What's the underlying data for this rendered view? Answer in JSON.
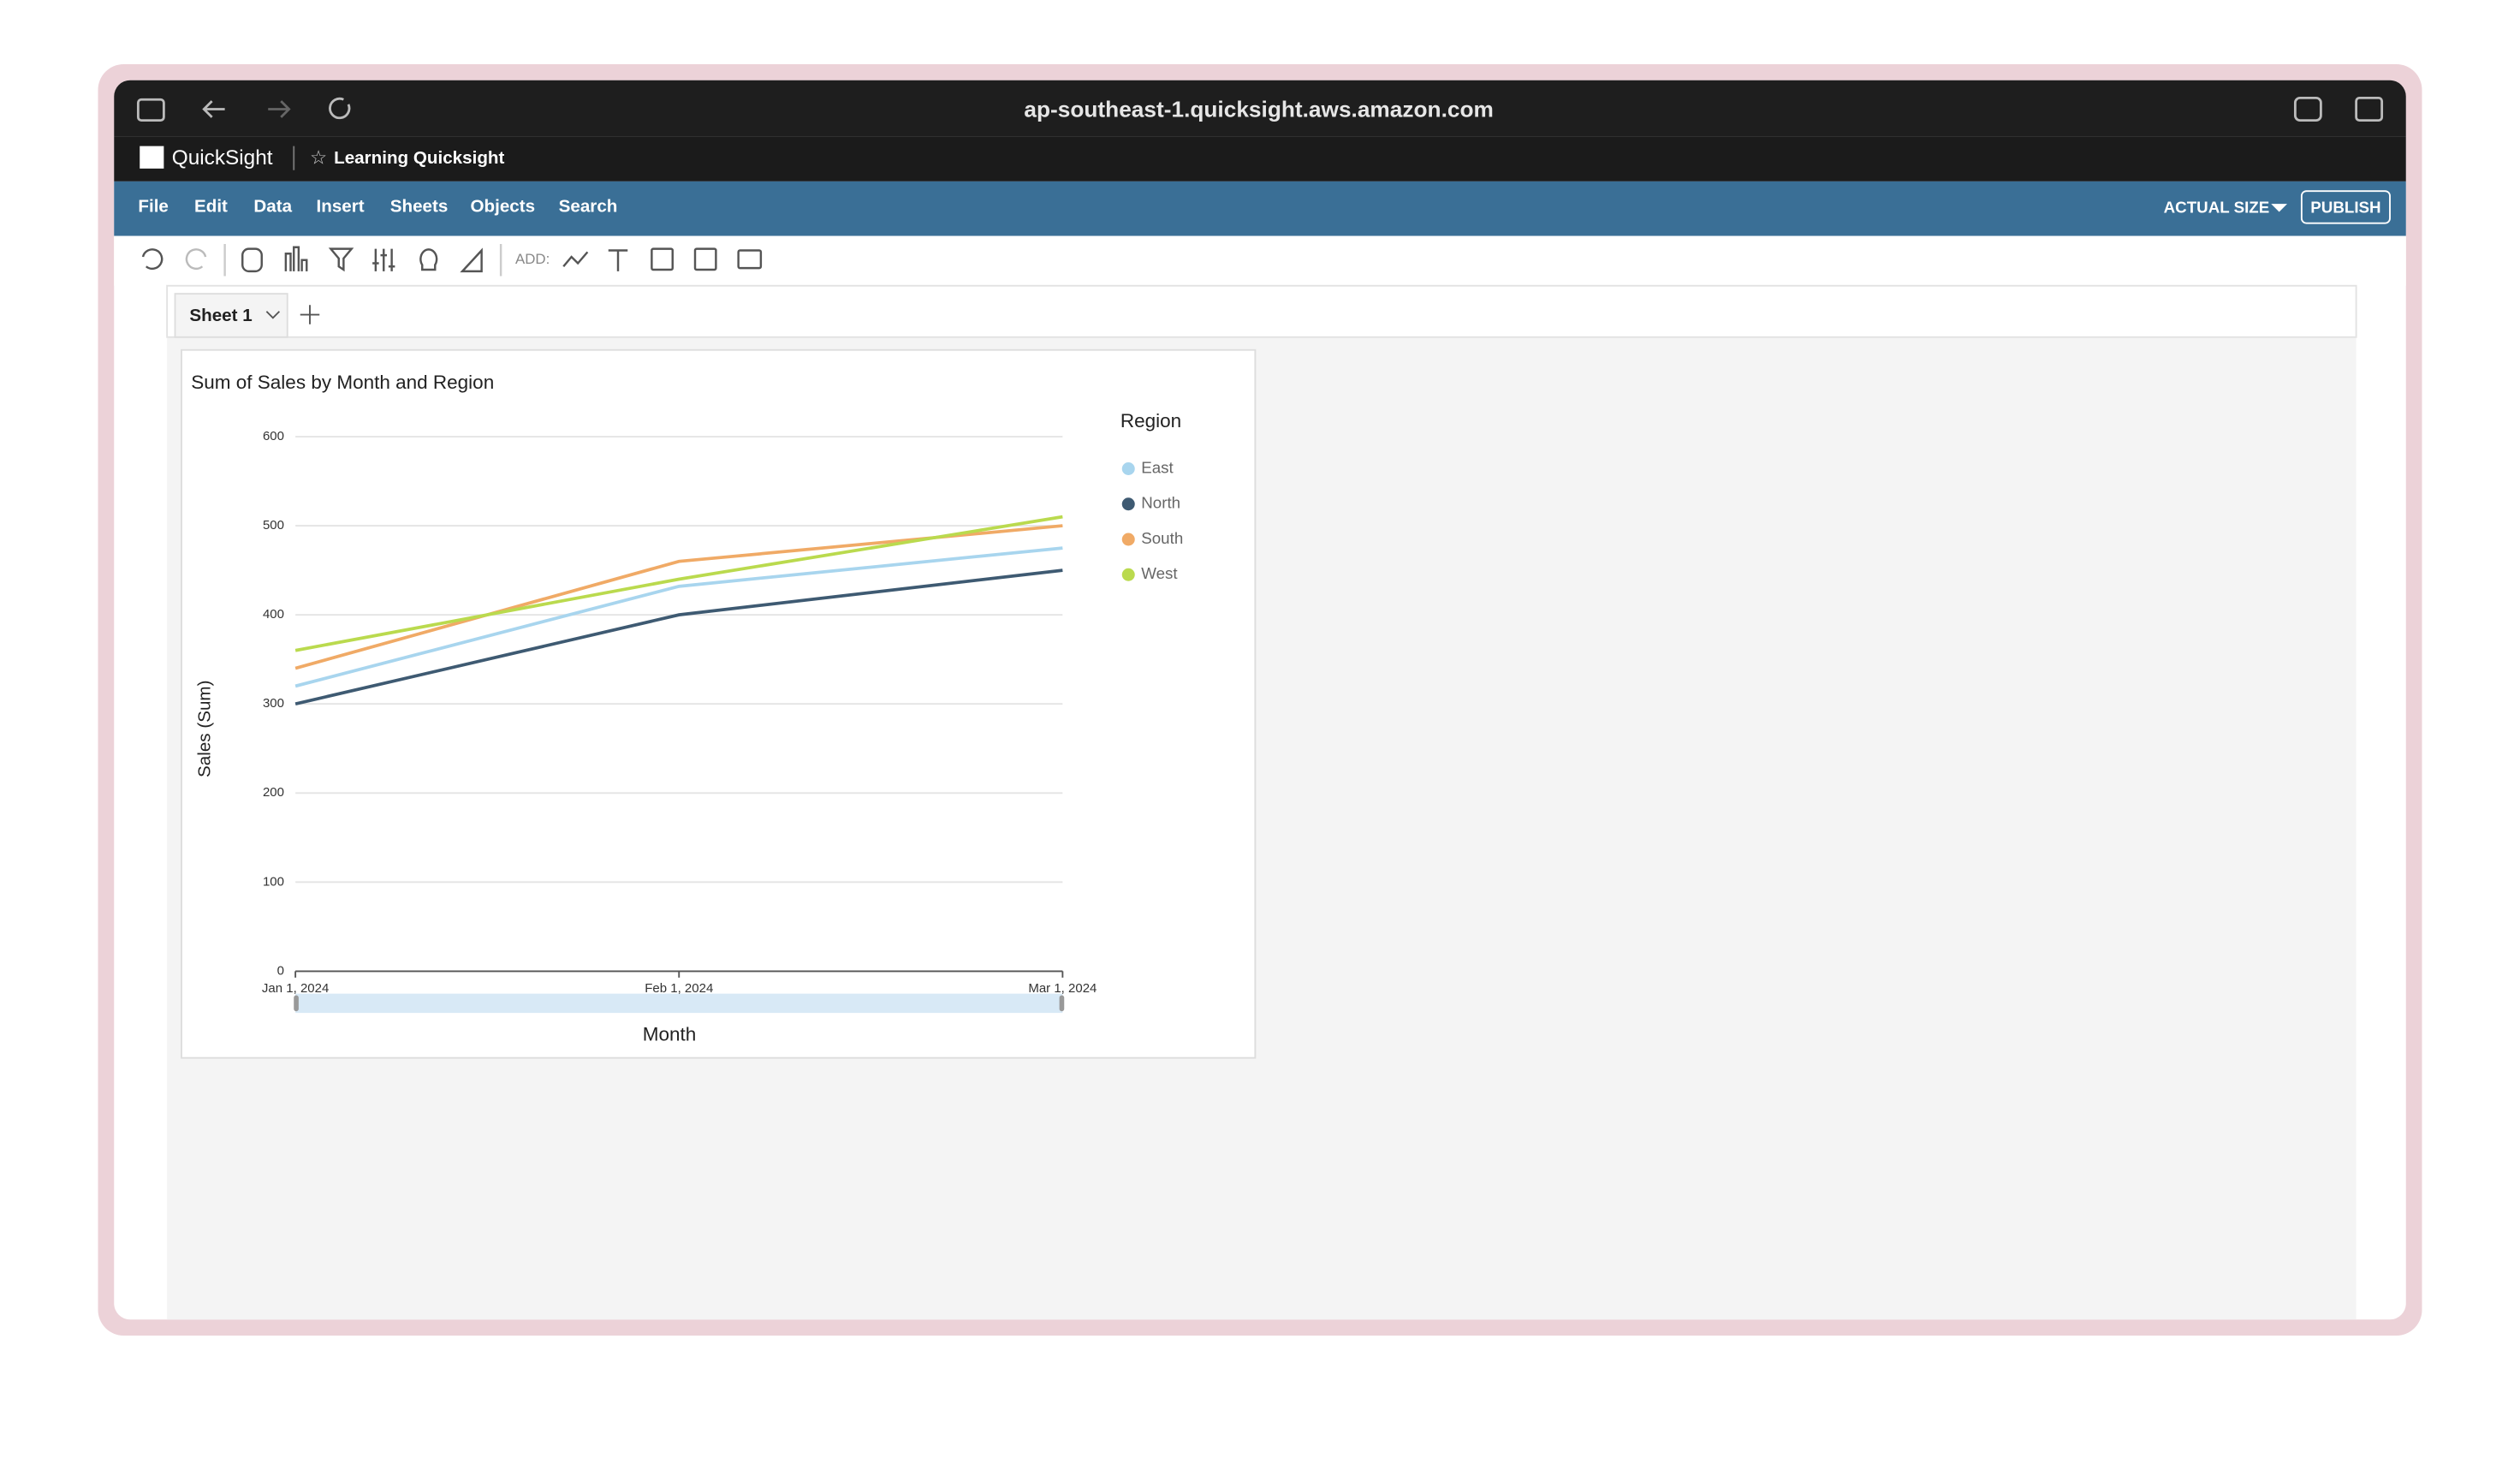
{
  "browser": {
    "url": "ap-southeast-1.quicksight.aws.amazon.com"
  },
  "app": {
    "name": "QuickSight",
    "analysis": "Learning Quicksight"
  },
  "menu": {
    "items": [
      "File",
      "Edit",
      "Data",
      "Insert",
      "Sheets",
      "Objects",
      "Search"
    ],
    "zoom": "ACTUAL SIZE",
    "publish": "PUBLISH"
  },
  "toolbar": {
    "add_label": "ADD:"
  },
  "sheet": {
    "tab": "Sheet 1"
  },
  "chart_data": {
    "type": "line",
    "title": "Sum of Sales by Month and Region",
    "x_label": "Month",
    "y_label": "Sales (Sum)",
    "legend_title": "Region",
    "legend": "right",
    "grid": true,
    "categories": [
      "Jan 1, 2024",
      "Feb 1, 2024",
      "Mar 1, 2024"
    ],
    "series": [
      {
        "name": "East",
        "color": "#a8d5ee",
        "values": [
          320,
          432,
          475
        ]
      },
      {
        "name": "North",
        "color": "#3e5a72",
        "values": [
          300,
          400,
          450
        ]
      },
      {
        "name": "South",
        "color": "#f0aa66",
        "values": [
          340,
          460,
          500
        ]
      },
      {
        "name": "West",
        "color": "#bada4e",
        "values": [
          360,
          440,
          510
        ]
      }
    ],
    "ylim": [
      0,
      600
    ],
    "yticks": [
      0,
      100,
      200,
      300,
      400,
      500,
      600
    ]
  }
}
